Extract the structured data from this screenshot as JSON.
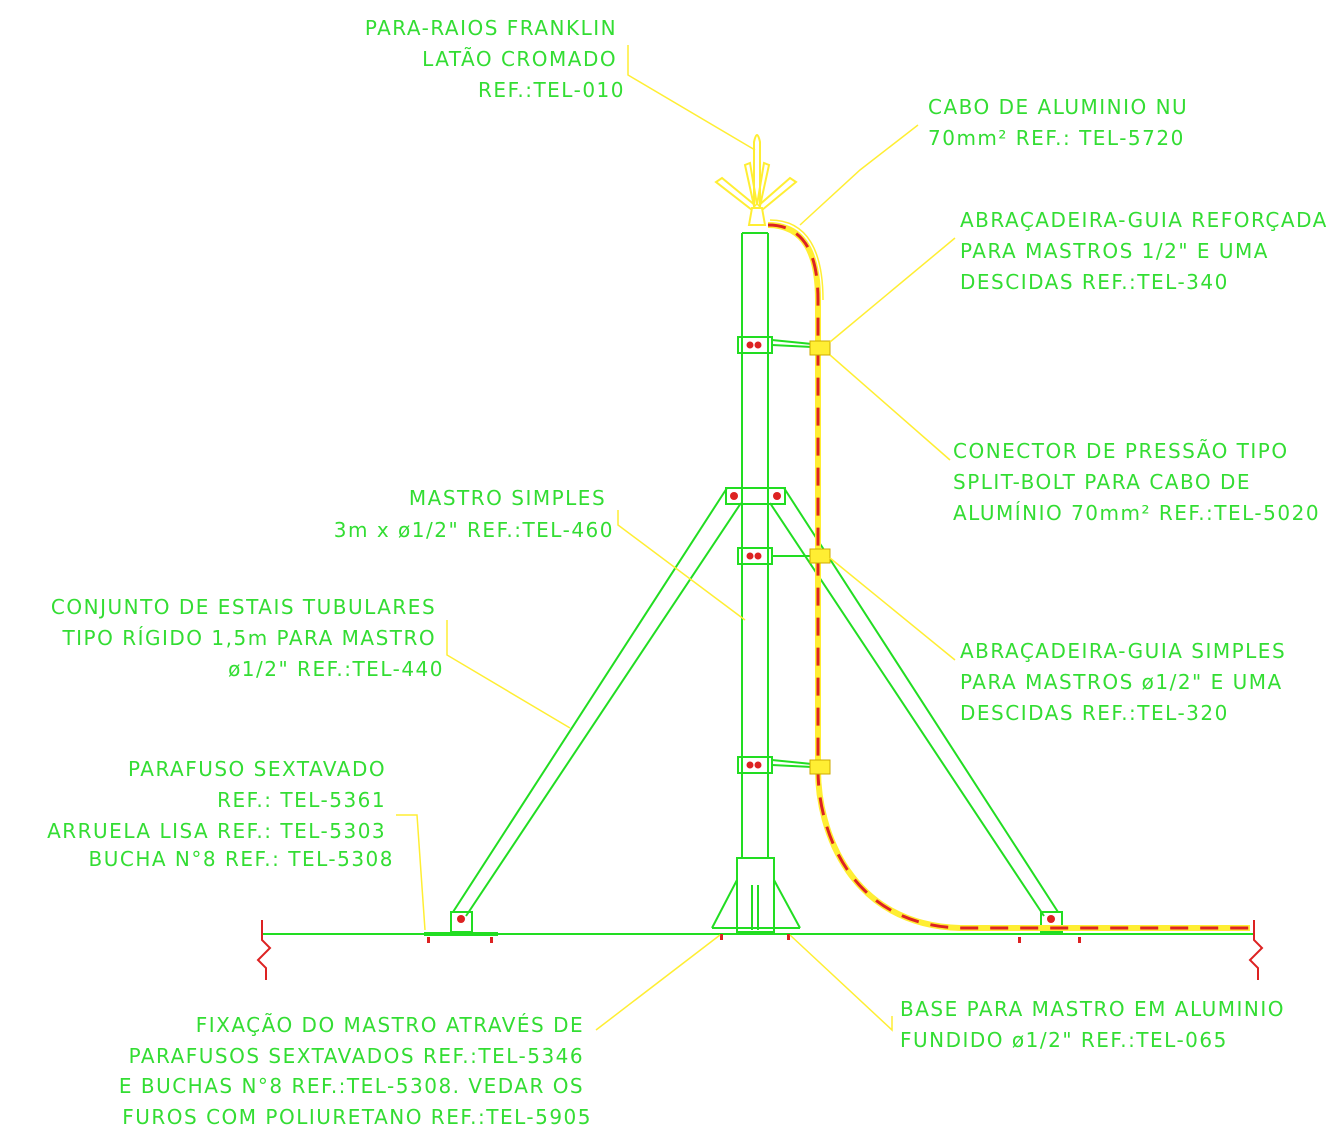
{
  "colors": {
    "structure": "#22dd22",
    "leader": "#ffee33",
    "cable_red": "#dd2222",
    "text": "#33dd33",
    "ground_marker": "#dd2222",
    "background": "#ffffff"
  },
  "labels": {
    "franklin": [
      "PARA-RAIOS FRANKLIN",
      "LATÃO CROMADO",
      "REF.:TEL-010"
    ],
    "cabo": [
      "CABO DE ALUMINIO NU",
      "70mm² REF.: TEL-5720"
    ],
    "abracadeira_reforcada": [
      "ABRAÇADEIRA-GUIA REFORÇADA",
      "PARA MASTROS 1/2\" E UMA",
      "DESCIDAS REF.:TEL-340"
    ],
    "conector": [
      "CONECTOR DE PRESSÃO TIPO",
      "SPLIT-BOLT PARA CABO DE",
      "ALUMÍNIO 70mm² REF.:TEL-5020"
    ],
    "mastro": [
      "MASTRO SIMPLES",
      "3m x ø1/2\" REF.:TEL-460"
    ],
    "estais": [
      "CONJUNTO DE ESTAIS TUBULARES",
      "TIPO RÍGIDO 1,5m PARA MASTRO",
      "ø1/2\" REF.:TEL-440"
    ],
    "abracadeira_simples": [
      "ABRAÇADEIRA-GUIA SIMPLES",
      "PARA MASTROS ø1/2\" E UMA",
      "DESCIDAS REF.:TEL-320"
    ],
    "parafuso": [
      "PARAFUSO SEXTAVADO",
      "REF.: TEL-5361",
      "ARRUELA LISA REF.: TEL-5303",
      "BUCHA N°8 REF.: TEL-5308"
    ],
    "fixacao": [
      "FIXAÇÃO DO MASTRO ATRAVÉS DE",
      "PARAFUSOS SEXTAVADOS REF.:TEL-5346",
      "E BUCHAS N°8 REF.:TEL-5308. VEDAR OS",
      "FUROS COM POLIURETANO REF.:TEL-5905"
    ],
    "base": [
      "BASE PARA MASTRO EM ALUMINIO",
      "FUNDIDO ø1/2\" REF.:TEL-065"
    ]
  }
}
